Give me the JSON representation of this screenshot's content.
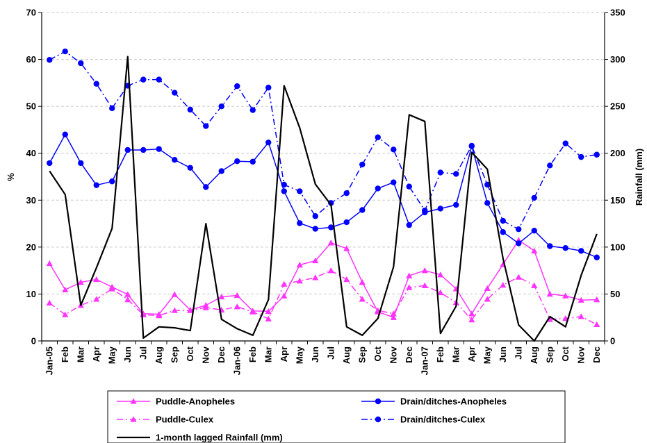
{
  "chart_data": {
    "type": "line",
    "title": "",
    "xlabel": "",
    "ylabel": "%",
    "y2label": "Rainfall (mm)",
    "ylim": [
      0,
      70
    ],
    "y2lim": [
      0,
      350
    ],
    "yticks": [
      0,
      10,
      20,
      30,
      40,
      50,
      60,
      70
    ],
    "y2ticks": [
      0,
      50,
      100,
      150,
      200,
      250,
      300,
      350
    ],
    "grid": "horizontal dashed",
    "legend_position": "bottom",
    "categories": [
      "Jan-05",
      "Feb",
      "Mar",
      "Apr",
      "May",
      "Jun",
      "Jul",
      "Aug",
      "Sep",
      "Oct",
      "Nov",
      "Dec",
      "Jan-06",
      "Feb",
      "Mar",
      "Apr",
      "May",
      "Jun",
      "Jul",
      "Aug",
      "Sep",
      "Oct",
      "Nov",
      "Dec",
      "Jan-07",
      "Feb",
      "Mar",
      "Apr",
      "May",
      "Jun",
      "Jul",
      "Aug",
      "Sep",
      "Oct",
      "Nov",
      "Dec"
    ],
    "series": [
      {
        "name": "Puddle-Anopheles",
        "axis": "left",
        "color": "#ff33ff",
        "line": "solid",
        "marker": "triangle",
        "values": [
          16.5,
          10.9,
          12.5,
          13.1,
          11.5,
          9.9,
          5.8,
          5.7,
          9.9,
          6.6,
          7.6,
          9.4,
          9.7,
          6.4,
          6.3,
          9.6,
          16.2,
          17.1,
          20.9,
          19.7,
          12.5,
          6.2,
          5.0,
          13.9,
          15.0,
          14.1,
          11.1,
          5.8,
          11.2,
          16.3,
          21.5,
          19.2,
          10.0,
          9.6,
          8.7,
          8.8
        ]
      },
      {
        "name": "Drain/ditches-Anopheles",
        "axis": "left",
        "color": "#0000ff",
        "line": "solid",
        "marker": "circle",
        "values": [
          37.9,
          44.0,
          37.9,
          33.2,
          34.0,
          40.7,
          40.7,
          40.9,
          38.6,
          36.9,
          32.8,
          36.2,
          38.3,
          38.2,
          42.3,
          31.9,
          25.1,
          23.9,
          24.2,
          25.3,
          27.9,
          32.5,
          33.8,
          24.7,
          27.4,
          28.2,
          29.0,
          41.5,
          29.4,
          23.2,
          20.8,
          23.5,
          20.2,
          19.8,
          19.2,
          17.8
        ]
      },
      {
        "name": "Puddle-Culex",
        "axis": "left",
        "color": "#ff33ff",
        "line": "dashed",
        "marker": "triangle",
        "values": [
          8.1,
          5.6,
          7.6,
          8.9,
          11.1,
          8.8,
          5.6,
          5.4,
          6.5,
          6.5,
          7.1,
          6.6,
          7.3,
          6.2,
          4.7,
          12.1,
          12.8,
          13.5,
          15.0,
          13.1,
          8.9,
          6.5,
          5.8,
          11.4,
          11.8,
          10.3,
          8.2,
          4.5,
          8.9,
          11.9,
          13.6,
          11.8,
          4.6,
          4.8,
          5.2,
          3.5
        ]
      },
      {
        "name": "Drain/ditches-Culex",
        "axis": "left",
        "color": "#0000ff",
        "line": "dashed",
        "marker": "circle",
        "values": [
          59.9,
          61.7,
          59.2,
          54.8,
          49.6,
          54.4,
          55.7,
          55.7,
          52.9,
          49.3,
          45.8,
          50.0,
          54.3,
          49.2,
          54.0,
          33.3,
          31.9,
          26.6,
          29.4,
          31.5,
          37.6,
          43.4,
          40.8,
          32.9,
          27.8,
          35.9,
          35.6,
          41.6,
          33.3,
          25.6,
          23.8,
          30.5,
          37.4,
          42.1,
          39.2,
          39.7
        ]
      },
      {
        "name": "1-month lagged Rainfall (mm)",
        "axis": "right",
        "color": "#000000",
        "line": "solid",
        "marker": "none",
        "values": [
          181,
          156,
          38,
          78,
          120,
          303,
          3,
          15,
          14,
          11,
          125,
          23,
          13,
          6,
          44,
          272,
          227,
          167,
          145,
          15,
          6,
          24,
          79,
          241,
          234,
          8,
          37,
          201,
          183,
          88,
          17,
          0,
          26,
          15,
          70,
          114
        ]
      }
    ]
  }
}
